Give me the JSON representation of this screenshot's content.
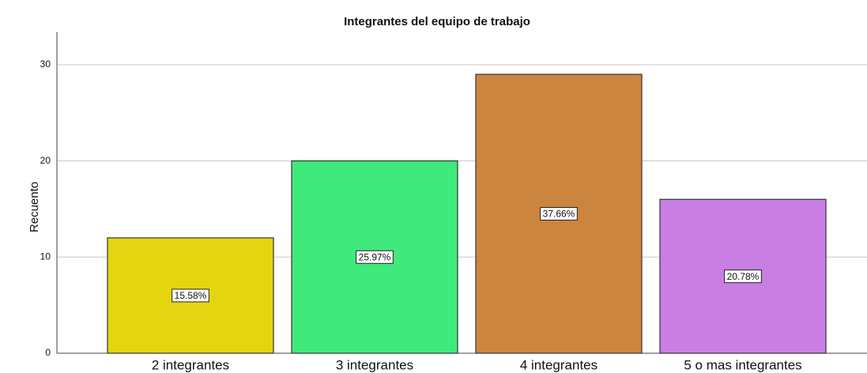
{
  "chart_data": {
    "type": "bar",
    "title": "Integrantes del equipo de trabajo",
    "ylabel": "Recuento",
    "categories": [
      "2 integrantes",
      "3 integrantes",
      "4 integrantes",
      "5 o mas  integrantes"
    ],
    "values": [
      12,
      20,
      29,
      16
    ],
    "annotations": [
      "15.58%",
      "25.97%",
      "37.66%",
      "20.78%"
    ],
    "colors": [
      "#e3d50f",
      "#40e97c",
      "#cc853f",
      "#c97ee4"
    ],
    "ylim": [
      0,
      33.4
    ],
    "yticks": [
      0,
      10,
      20,
      30
    ],
    "grid": true
  }
}
